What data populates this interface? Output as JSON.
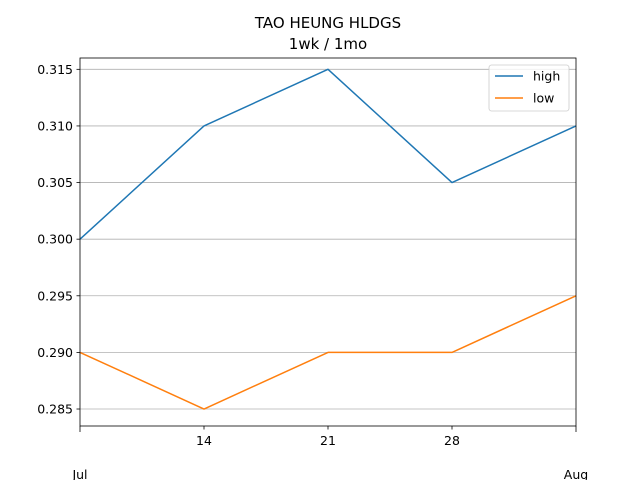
{
  "chart_data": {
    "type": "line",
    "title": "TAO HEUNG HLDGS",
    "subtitle": "1wk / 1mo",
    "xlabel": "",
    "ylabel": "",
    "x": [
      "2023-07-07",
      "2023-07-14",
      "2023-07-21",
      "2023-07-28",
      "2023-08-04"
    ],
    "x_tick_labels": [
      {
        "x": "2023-07-14",
        "label": "14"
      },
      {
        "x": "2023-07-21",
        "label": "21"
      },
      {
        "x": "2023-07-28",
        "label": "28"
      }
    ],
    "x_month_labels": [
      {
        "x": "2023-07-07",
        "label": "Jul"
      },
      {
        "x": "2023-08-04",
        "label": "Aug"
      }
    ],
    "xlim": [
      "2023-07-07",
      "2023-08-04"
    ],
    "ylim": [
      0.2835,
      0.316
    ],
    "y_ticks": [
      0.285,
      0.29,
      0.295,
      0.3,
      0.305,
      0.31,
      0.315
    ],
    "y_tick_labels": [
      "0.285",
      "0.290",
      "0.295",
      "0.300",
      "0.305",
      "0.310",
      "0.315"
    ],
    "grid": "horizontal",
    "legend_position": "top-right",
    "series": [
      {
        "name": "high",
        "color": "#1f77b4",
        "values": [
          0.3,
          0.31,
          0.315,
          0.305,
          0.31
        ]
      },
      {
        "name": "low",
        "color": "#ff7f0e",
        "values": [
          0.29,
          0.285,
          0.29,
          0.29,
          0.295
        ]
      }
    ]
  }
}
